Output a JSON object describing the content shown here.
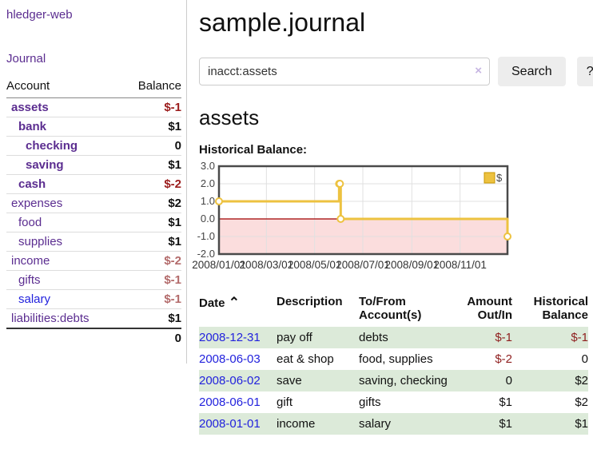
{
  "colors": {
    "accent_purple": "#5b2d90",
    "link_blue": "#2222dd",
    "negative_red": "#9b1c1c",
    "muted_negative": "#b36b6b",
    "row_green": "#dcead9",
    "series_gold": "#edc240",
    "negative_region_pink": "#fbdddd",
    "zero_line_red": "#a00000"
  },
  "sidebar": {
    "app_title": "hledger-web",
    "nav": {
      "journal_label": "Journal"
    },
    "accounts_table": {
      "headers": {
        "account": "Account",
        "balance": "Balance"
      },
      "rows": [
        {
          "name": "assets",
          "balance": "$-1",
          "depth": 1,
          "bold": true,
          "balance_color": "negative",
          "link_color": "purple"
        },
        {
          "name": "bank",
          "balance": "$1",
          "depth": 2,
          "bold": true,
          "balance_color": "normal",
          "link_color": "purple"
        },
        {
          "name": "checking",
          "balance": "0",
          "depth": 3,
          "bold": true,
          "balance_color": "normal",
          "link_color": "purple"
        },
        {
          "name": "saving",
          "balance": "$1",
          "depth": 3,
          "bold": true,
          "balance_color": "normal",
          "link_color": "purple"
        },
        {
          "name": "cash",
          "balance": "$-2",
          "depth": 2,
          "bold": true,
          "balance_color": "negative",
          "link_color": "purple"
        },
        {
          "name": "expenses",
          "balance": "$2",
          "depth": 1,
          "bold": false,
          "balance_color": "normal",
          "link_color": "purple"
        },
        {
          "name": "food",
          "balance": "$1",
          "depth": 2,
          "bold": false,
          "balance_color": "normal",
          "link_color": "purple"
        },
        {
          "name": "supplies",
          "balance": "$1",
          "depth": 2,
          "bold": false,
          "balance_color": "normal",
          "link_color": "purple"
        },
        {
          "name": "income",
          "balance": "$-2",
          "depth": 1,
          "bold": false,
          "balance_color": "muted-negative",
          "link_color": "purple"
        },
        {
          "name": "gifts",
          "balance": "$-1",
          "depth": 2,
          "bold": false,
          "balance_color": "muted-negative",
          "link_color": "purple"
        },
        {
          "name": "salary",
          "balance": "$-1",
          "depth": 2,
          "bold": false,
          "balance_color": "muted-negative",
          "link_color": "blue"
        },
        {
          "name": "liabilities:debts",
          "balance": "$1",
          "depth": 1,
          "bold": false,
          "balance_color": "normal",
          "link_color": "purple"
        }
      ],
      "total": "0"
    }
  },
  "header": {
    "title": "sample.journal"
  },
  "search": {
    "value": "inacct:assets",
    "clear_icon": "×",
    "button_label": "Search",
    "help_label": "?"
  },
  "account_page": {
    "heading": "assets",
    "chart_label": "Historical Balance:"
  },
  "chart_data": {
    "type": "line",
    "step": true,
    "title": "Historical Balance",
    "series": [
      {
        "name": "$",
        "color": "#edc240",
        "points": [
          [
            "2008-01-01",
            1
          ],
          [
            "2008-06-01",
            2
          ],
          [
            "2008-06-02",
            2
          ],
          [
            "2008-06-03",
            0
          ],
          [
            "2008-12-31",
            -1
          ]
        ]
      }
    ],
    "x_range": [
      "2008-01-01",
      "2008-12-31"
    ],
    "x_ticks": [
      "2008/01/01",
      "2008/03/01",
      "2008/05/01",
      "2008/07/01",
      "2008/09/01",
      "2008/11/01"
    ],
    "y_ticks": [
      3.0,
      2.0,
      1.0,
      0.0,
      -1.0,
      -2.0
    ],
    "ylim": [
      -2,
      3
    ],
    "grid": true,
    "negative_region_color": "#fbdddd",
    "zero_line_color": "#a00000",
    "legend": {
      "label": "$",
      "position": "top-right"
    }
  },
  "transactions": {
    "headers": {
      "date": "Date",
      "sort_icon": "⌃",
      "description": "Description",
      "account": "To/From Account(s)",
      "amount": "Amount Out/In",
      "balance": "Historical Balance"
    },
    "rows": [
      {
        "date": "2008-12-31",
        "description": "pay off",
        "accounts": "debts",
        "amount": "$-1",
        "amount_negative": true,
        "balance": "$-1",
        "balance_negative": true
      },
      {
        "date": "2008-06-03",
        "description": "eat & shop",
        "accounts": "food, supplies",
        "amount": "$-2",
        "amount_negative": true,
        "balance": "0",
        "balance_negative": false
      },
      {
        "date": "2008-06-02",
        "description": "save",
        "accounts": "saving, checking",
        "amount": "0",
        "amount_negative": false,
        "balance": "$2",
        "balance_negative": false
      },
      {
        "date": "2008-06-01",
        "description": "gift",
        "accounts": "gifts",
        "amount": "$1",
        "amount_negative": false,
        "balance": "$2",
        "balance_negative": false
      },
      {
        "date": "2008-01-01",
        "description": "income",
        "accounts": "salary",
        "amount": "$1",
        "amount_negative": false,
        "balance": "$1",
        "balance_negative": false
      }
    ]
  }
}
